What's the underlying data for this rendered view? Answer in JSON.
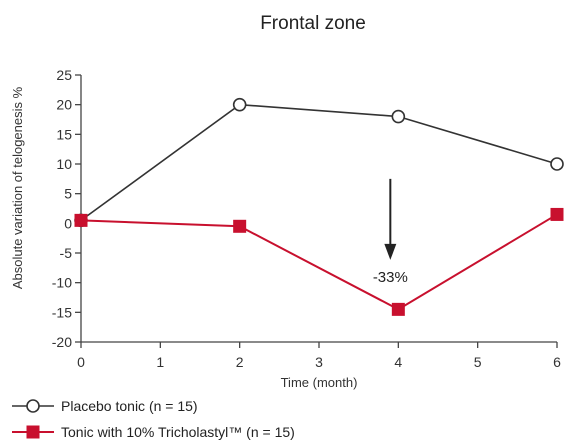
{
  "chart_data": {
    "type": "line",
    "title": "Frontal zone",
    "xlabel": "Time (month)",
    "ylabel": "Absolute variation of telogenesis %",
    "xlim": [
      0,
      6
    ],
    "ylim": [
      -20,
      25
    ],
    "xticks": [
      "0",
      "1",
      "2",
      "3",
      "4",
      "5",
      "6"
    ],
    "yticks": [
      "25",
      "20",
      "15",
      "10",
      "5",
      "0",
      "-5",
      "-10",
      "-15",
      "-20"
    ],
    "grid": false,
    "legend_position": "bottom-left",
    "series": [
      {
        "name": "Placebo tonic (n = 15)",
        "marker": "open-circle",
        "color": "#333333",
        "x": [
          0,
          2,
          4,
          6
        ],
        "y": [
          0.5,
          20,
          18,
          10
        ]
      },
      {
        "name": "Tonic with 10% Tricholastyl™ (n = 15)",
        "marker": "filled-square",
        "color": "#c8102e",
        "x": [
          0,
          2,
          4,
          6
        ],
        "y": [
          0.5,
          -0.5,
          -14.5,
          1.5
        ]
      }
    ],
    "annotations": [
      {
        "text": "-33%",
        "type": "arrow-down",
        "x": 4,
        "y_from": 7.5,
        "y_to": -6
      }
    ]
  }
}
